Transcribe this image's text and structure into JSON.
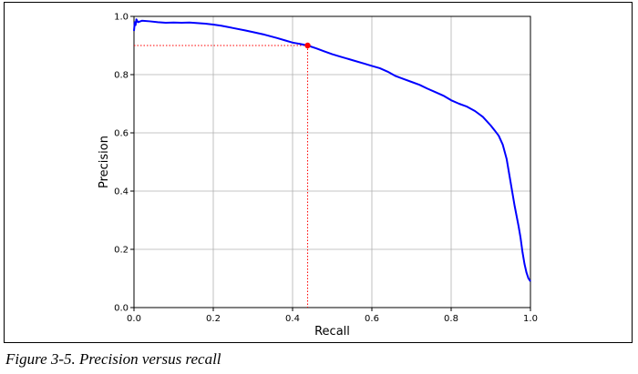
{
  "caption": "Figure 3-5. Precision versus recall",
  "chart_data": {
    "type": "line",
    "xlabel": "Recall",
    "ylabel": "Precision",
    "xlim": [
      0.0,
      1.0
    ],
    "ylim": [
      0.0,
      1.0
    ],
    "xticks": [
      "0.0",
      "0.2",
      "0.4",
      "0.6",
      "0.8",
      "1.0"
    ],
    "yticks": [
      "0.0",
      "0.2",
      "0.4",
      "0.6",
      "0.8",
      "1.0"
    ],
    "grid": true,
    "line_color": "#0000ff",
    "marker_color": "#ff0000",
    "series": [
      {
        "x": [
          0.0,
          0.002,
          0.004,
          0.006,
          0.01,
          0.02,
          0.04,
          0.06,
          0.08,
          0.1,
          0.12,
          0.14,
          0.16,
          0.18,
          0.2,
          0.22,
          0.25,
          0.28,
          0.3,
          0.33,
          0.36,
          0.38,
          0.4,
          0.42,
          0.438,
          0.46,
          0.48,
          0.5,
          0.52,
          0.55,
          0.58,
          0.6,
          0.62,
          0.64,
          0.66,
          0.68,
          0.7,
          0.72,
          0.74,
          0.76,
          0.78,
          0.8,
          0.82,
          0.84,
          0.86,
          0.88,
          0.9,
          0.91,
          0.92,
          0.93,
          0.94,
          0.95,
          0.96,
          0.97,
          0.975,
          0.98,
          0.985,
          0.99,
          0.995,
          1.0
        ],
        "y": [
          0.95,
          0.98,
          0.97,
          0.99,
          0.98,
          0.985,
          0.983,
          0.98,
          0.978,
          0.979,
          0.978,
          0.979,
          0.977,
          0.975,
          0.972,
          0.968,
          0.96,
          0.952,
          0.946,
          0.937,
          0.926,
          0.918,
          0.91,
          0.905,
          0.9,
          0.89,
          0.88,
          0.87,
          0.862,
          0.85,
          0.838,
          0.83,
          0.822,
          0.81,
          0.795,
          0.785,
          0.775,
          0.765,
          0.752,
          0.74,
          0.728,
          0.712,
          0.7,
          0.69,
          0.675,
          0.655,
          0.625,
          0.608,
          0.59,
          0.56,
          0.51,
          0.43,
          0.35,
          0.28,
          0.24,
          0.19,
          0.15,
          0.12,
          0.1,
          0.09
        ]
      }
    ],
    "highlight_point": {
      "x": 0.438,
      "y": 0.9
    }
  }
}
